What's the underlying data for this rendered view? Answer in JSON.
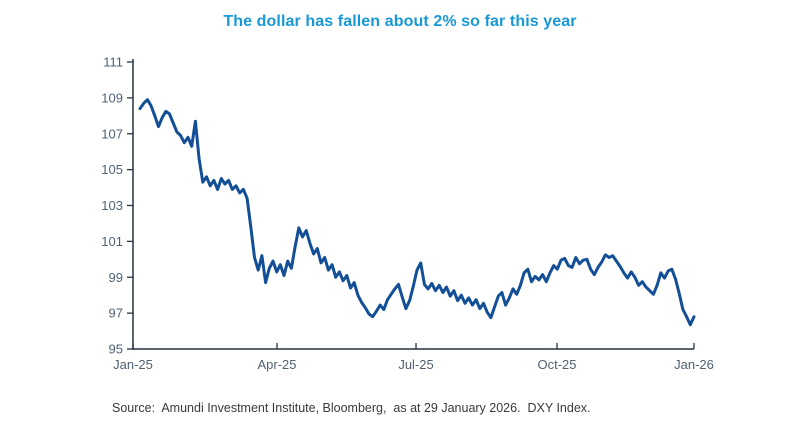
{
  "title": "The dollar has fallen about 2% so far this year",
  "source": "Source:  Amundi Investment Institute, Bloomberg,  as at 29 January 2026.  DXY Index.",
  "colors": {
    "title": "#1899D6",
    "line": "#134F96",
    "axis": "#26323E",
    "tick_label": "#4F6173",
    "source_text": "#3A3A3A",
    "background": "#FFFFFF"
  },
  "chart_data": {
    "type": "line",
    "title": "The dollar has fallen about 2% so far this year",
    "series_name": "DXY Index",
    "xlabel": "",
    "ylabel": "",
    "ylim": [
      95,
      111
    ],
    "y_ticks": [
      95,
      97,
      99,
      101,
      103,
      105,
      107,
      109,
      111
    ],
    "x_ticks": [
      {
        "label": "Jan-25",
        "pos": 0
      },
      {
        "label": "Apr-25",
        "pos": 0.2567
      },
      {
        "label": "Jul-25",
        "pos": 0.5045
      },
      {
        "label": "Oct-25",
        "pos": 0.7558
      },
      {
        "label": "Jan-26",
        "pos": 1
      }
    ],
    "grid": false,
    "legend_position": "none",
    "values": [
      108.4,
      108.7,
      108.9,
      108.55,
      108.0,
      107.4,
      107.9,
      108.25,
      108.1,
      107.6,
      107.1,
      106.9,
      106.5,
      106.8,
      106.3,
      107.7,
      105.6,
      104.3,
      104.6,
      104.1,
      104.4,
      103.9,
      104.5,
      104.2,
      104.4,
      103.9,
      104.1,
      103.7,
      103.9,
      103.4,
      101.8,
      100.1,
      99.4,
      100.2,
      98.7,
      99.5,
      99.9,
      99.3,
      99.7,
      99.1,
      99.9,
      99.5,
      100.7,
      101.75,
      101.25,
      101.6,
      100.9,
      100.3,
      100.6,
      99.8,
      100.1,
      99.4,
      99.7,
      99.0,
      99.3,
      98.8,
      99.1,
      98.4,
      98.7,
      98.0,
      97.6,
      97.3,
      96.95,
      96.8,
      97.1,
      97.45,
      97.2,
      97.75,
      98.05,
      98.35,
      98.6,
      97.9,
      97.25,
      97.7,
      98.5,
      99.4,
      99.8,
      98.6,
      98.35,
      98.65,
      98.25,
      98.55,
      98.15,
      98.45,
      97.95,
      98.25,
      97.7,
      98.0,
      97.55,
      97.85,
      97.45,
      97.75,
      97.25,
      97.55,
      97.05,
      96.75,
      97.35,
      97.95,
      98.15,
      97.45,
      97.85,
      98.35,
      98.05,
      98.55,
      99.25,
      99.45,
      98.75,
      99.05,
      98.85,
      99.15,
      98.75,
      99.25,
      99.65,
      99.45,
      99.95,
      100.05,
      99.65,
      99.55,
      100.1,
      99.75,
      99.95,
      100.0,
      99.45,
      99.15,
      99.55,
      99.85,
      100.25,
      100.1,
      100.2,
      99.9,
      99.6,
      99.25,
      98.95,
      99.3,
      99.0,
      98.55,
      98.75,
      98.45,
      98.25,
      98.05,
      98.55,
      99.25,
      98.95,
      99.35,
      99.45,
      98.9,
      98.1,
      97.2,
      96.8,
      96.35,
      96.8
    ]
  }
}
